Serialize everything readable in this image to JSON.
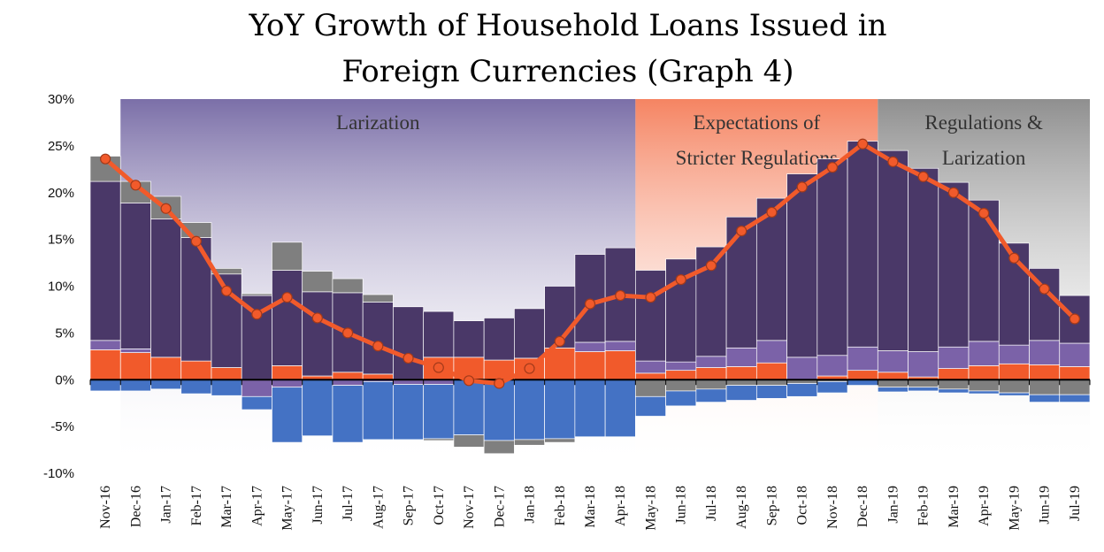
{
  "chart_data": {
    "type": "bar",
    "title_lines": [
      "YoY Growth of Household Loans Issued in",
      "Foreign Currencies (Graph 4)"
    ],
    "xlabel": "",
    "ylabel": "",
    "ylim": [
      -10,
      30
    ],
    "yticks": [
      30,
      25,
      20,
      15,
      10,
      5,
      0,
      -5,
      -10
    ],
    "ytick_labels": [
      "30%",
      "25%",
      "20%",
      "15%",
      "10%",
      "5%",
      "0%",
      "-5%",
      "-10%"
    ],
    "categories": [
      "Nov-16",
      "Dec-16",
      "Jan-17",
      "Feb-17",
      "Mar-17",
      "Apr-17",
      "May-17",
      "Jun-17",
      "Jul-17",
      "Aug-17",
      "Sep-17",
      "Oct-17",
      "Nov-17",
      "Dec-17",
      "Jan-18",
      "Feb-18",
      "Mar-18",
      "Apr-18",
      "May-18",
      "Jun-18",
      "Jul-18",
      "Aug-18",
      "Sep-18",
      "Oct-18",
      "Nov-18",
      "Dec-18",
      "Jan-19",
      "Feb-19",
      "Mar-19",
      "Apr-19",
      "May-19",
      "Jun-19",
      "Jul-19"
    ],
    "series": [
      {
        "color": "#f15a2b",
        "values": [
          3.2,
          2.9,
          2.4,
          2.0,
          1.3,
          0.0,
          1.5,
          0.4,
          0.8,
          0.6,
          0.0,
          2.4,
          2.4,
          2.1,
          2.3,
          3.4,
          3.0,
          3.1,
          0.7,
          1.0,
          1.3,
          1.4,
          1.8,
          0.0,
          0.4,
          1.0,
          0.8,
          0.3,
          1.2,
          1.5,
          1.7,
          1.6,
          1.4
        ]
      },
      {
        "color": "#7b62a8",
        "values": [
          1.0,
          0.4,
          0.0,
          0.0,
          0.0,
          -1.8,
          -0.8,
          0.0,
          -0.6,
          -0.2,
          -0.5,
          -0.5,
          0.0,
          0.0,
          0.0,
          0.0,
          1.0,
          1.0,
          1.3,
          0.9,
          1.2,
          2.0,
          2.4,
          2.4,
          2.2,
          2.5,
          2.3,
          2.7,
          2.3,
          2.6,
          2.0,
          2.6,
          2.5
        ]
      },
      {
        "color": "#4a3868",
        "values": [
          17.0,
          15.6,
          14.8,
          13.2,
          10.0,
          9.0,
          10.2,
          9.0,
          8.5,
          7.7,
          7.8,
          4.9,
          3.9,
          4.5,
          5.3,
          6.6,
          9.4,
          10.0,
          9.7,
          11.0,
          11.7,
          14.0,
          15.2,
          19.6,
          21.0,
          22.0,
          21.4,
          19.6,
          17.6,
          15.1,
          10.9,
          7.7,
          5.1
        ]
      },
      {
        "color": "#7f7f7f",
        "values": [
          2.7,
          2.3,
          2.4,
          1.6,
          0.6,
          0.2,
          3.0,
          2.2,
          1.5,
          0.8,
          0.0,
          0.0,
          0.0,
          0.0,
          0.0,
          0.0,
          0.0,
          0.0,
          -1.8,
          -1.2,
          -1.0,
          -0.6,
          -0.6,
          -0.4,
          -0.2,
          0.0,
          -0.8,
          -0.8,
          -1.0,
          -1.2,
          -1.4,
          -1.6,
          -1.6
        ]
      },
      {
        "color": "#4472c4",
        "values": [
          -1.2,
          -1.2,
          -1.0,
          -1.5,
          -1.7,
          -1.4,
          -5.9,
          -6.0,
          -6.1,
          -6.2,
          -5.9,
          -5.8,
          -5.9,
          -6.5,
          -6.4,
          -6.3,
          -6.1,
          -6.1,
          -2.1,
          -1.6,
          -1.4,
          -1.6,
          -1.4,
          -1.4,
          -1.2,
          -0.6,
          -0.5,
          -0.4,
          -0.4,
          -0.3,
          -0.3,
          -0.8,
          -0.8
        ]
      },
      {
        "color": "#7f7f7f",
        "values": [
          0.0,
          0.0,
          0.0,
          0.0,
          0.0,
          0.0,
          0.0,
          0.0,
          0.0,
          0.0,
          0.0,
          -0.2,
          -1.3,
          -1.4,
          -0.6,
          -0.4,
          0.0,
          0.0,
          0.0,
          0.0,
          0.0,
          0.0,
          0.0,
          0.0,
          0.0,
          0.0,
          0.0,
          0.0,
          0.0,
          0.0,
          0.0,
          0.0,
          0.0
        ]
      }
    ],
    "line": {
      "color": "#f15a2b",
      "values": [
        23.6,
        20.8,
        18.3,
        14.8,
        9.5,
        7.0,
        8.8,
        6.6,
        5.0,
        3.6,
        2.3,
        1.3,
        -0.1,
        -0.4,
        1.2,
        4.1,
        8.1,
        9.0,
        8.8,
        10.7,
        12.2,
        15.9,
        17.9,
        20.6,
        22.7,
        25.2,
        23.3,
        21.7,
        20.0,
        17.8,
        13.0,
        9.7,
        6.5
      ]
    },
    "regions": [
      {
        "label_lines": [
          "Larization"
        ],
        "start": "Dec-16",
        "end": "Apr-18",
        "color": "#7b6fa8"
      },
      {
        "label_lines": [
          "Expectations of",
          "Stricter Regulations"
        ],
        "start": "May-18",
        "end": "Dec-18",
        "color": "#f58462"
      },
      {
        "label_lines": [
          "Regulations &",
          "Larization"
        ],
        "start": "Jan-19",
        "end": "Jul-19",
        "color": "#8f8f8f"
      }
    ],
    "grid": false,
    "legend": "none"
  }
}
